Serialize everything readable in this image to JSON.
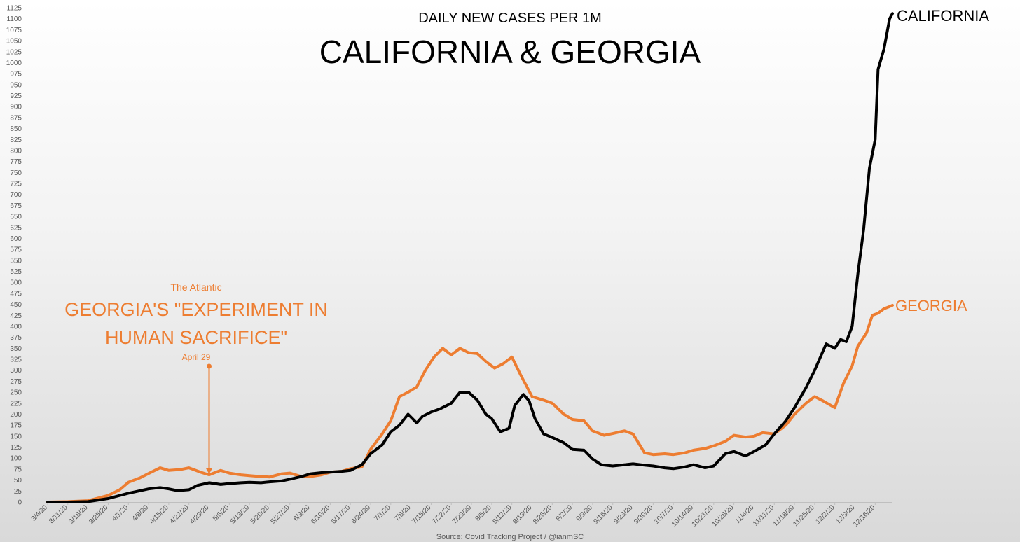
{
  "chart_data": {
    "type": "line",
    "subtitle": "DAILY NEW CASES PER 1M",
    "title": "CALIFORNIA & GEORGIA",
    "source": "Source: Covid Tracking Project / @ianmSC",
    "ylim": [
      0,
      1125
    ],
    "yticks": [
      0,
      25,
      50,
      75,
      100,
      125,
      150,
      175,
      200,
      225,
      250,
      275,
      300,
      325,
      350,
      375,
      400,
      425,
      450,
      475,
      500,
      525,
      550,
      575,
      600,
      625,
      650,
      675,
      700,
      725,
      750,
      775,
      800,
      825,
      850,
      875,
      900,
      925,
      950,
      975,
      1000,
      1025,
      1050,
      1075,
      1100,
      1125
    ],
    "xlim": [
      "2020-03-04",
      "2020-12-22"
    ],
    "xticks": [
      "3/4/20",
      "3/11/20",
      "3/18/20",
      "3/25/20",
      "4/1/20",
      "4/8/20",
      "4/15/20",
      "4/22/20",
      "4/29/20",
      "5/6/20",
      "5/13/20",
      "5/20/20",
      "5/27/20",
      "6/3/20",
      "6/10/20",
      "6/17/20",
      "6/24/20",
      "7/1/20",
      "7/8/20",
      "7/15/20",
      "7/22/20",
      "7/29/20",
      "8/5/20",
      "8/12/20",
      "8/19/20",
      "8/26/20",
      "9/2/20",
      "9/9/20",
      "9/16/20",
      "9/23/20",
      "9/30/20",
      "10/7/20",
      "10/14/20",
      "10/21/20",
      "10/28/20",
      "11/4/20",
      "11/11/20",
      "11/18/20",
      "11/25/20",
      "12/2/20",
      "12/9/20",
      "12/16/20"
    ],
    "grid": false,
    "legend": "none",
    "series": [
      {
        "name": "CALIFORNIA",
        "color": "#000000",
        "points": [
          [
            "2020-03-04",
            0
          ],
          [
            "2020-03-11",
            0
          ],
          [
            "2020-03-18",
            1
          ],
          [
            "2020-03-25",
            8
          ],
          [
            "2020-04-01",
            20
          ],
          [
            "2020-04-08",
            30
          ],
          [
            "2020-04-12",
            33
          ],
          [
            "2020-04-15",
            30
          ],
          [
            "2020-04-18",
            26
          ],
          [
            "2020-04-22",
            28
          ],
          [
            "2020-04-25",
            38
          ],
          [
            "2020-04-29",
            44
          ],
          [
            "2020-05-03",
            40
          ],
          [
            "2020-05-06",
            42
          ],
          [
            "2020-05-10",
            44
          ],
          [
            "2020-05-13",
            45
          ],
          [
            "2020-05-17",
            44
          ],
          [
            "2020-05-20",
            46
          ],
          [
            "2020-05-24",
            48
          ],
          [
            "2020-05-27",
            52
          ],
          [
            "2020-05-31",
            58
          ],
          [
            "2020-06-03",
            64
          ],
          [
            "2020-06-07",
            67
          ],
          [
            "2020-06-10",
            68
          ],
          [
            "2020-06-14",
            70
          ],
          [
            "2020-06-17",
            72
          ],
          [
            "2020-06-21",
            85
          ],
          [
            "2020-06-24",
            110
          ],
          [
            "2020-06-28",
            130
          ],
          [
            "2020-07-01",
            160
          ],
          [
            "2020-07-04",
            175
          ],
          [
            "2020-07-07",
            200
          ],
          [
            "2020-07-10",
            180
          ],
          [
            "2020-07-12",
            195
          ],
          [
            "2020-07-15",
            205
          ],
          [
            "2020-07-18",
            212
          ],
          [
            "2020-07-22",
            225
          ],
          [
            "2020-07-25",
            250
          ],
          [
            "2020-07-28",
            250
          ],
          [
            "2020-07-31",
            232
          ],
          [
            "2020-08-03",
            200
          ],
          [
            "2020-08-05",
            190
          ],
          [
            "2020-08-08",
            160
          ],
          [
            "2020-08-11",
            168
          ],
          [
            "2020-08-13",
            220
          ],
          [
            "2020-08-16",
            245
          ],
          [
            "2020-08-18",
            230
          ],
          [
            "2020-08-20",
            190
          ],
          [
            "2020-08-23",
            155
          ],
          [
            "2020-08-26",
            147
          ],
          [
            "2020-08-30",
            135
          ],
          [
            "2020-09-02",
            120
          ],
          [
            "2020-09-06",
            118
          ],
          [
            "2020-09-09",
            98
          ],
          [
            "2020-09-12",
            85
          ],
          [
            "2020-09-16",
            82
          ],
          [
            "2020-09-20",
            85
          ],
          [
            "2020-09-23",
            87
          ],
          [
            "2020-09-27",
            84
          ],
          [
            "2020-09-30",
            82
          ],
          [
            "2020-10-04",
            78
          ],
          [
            "2020-10-07",
            76
          ],
          [
            "2020-10-11",
            80
          ],
          [
            "2020-10-14",
            85
          ],
          [
            "2020-10-18",
            78
          ],
          [
            "2020-10-21",
            82
          ],
          [
            "2020-10-25",
            110
          ],
          [
            "2020-10-28",
            115
          ],
          [
            "2020-11-01",
            105
          ],
          [
            "2020-11-04",
            115
          ],
          [
            "2020-11-08",
            130
          ],
          [
            "2020-11-11",
            155
          ],
          [
            "2020-11-15",
            185
          ],
          [
            "2020-11-18",
            215
          ],
          [
            "2020-11-22",
            260
          ],
          [
            "2020-11-25",
            300
          ],
          [
            "2020-11-29",
            360
          ],
          [
            "2020-12-02",
            350
          ],
          [
            "2020-12-04",
            370
          ],
          [
            "2020-12-06",
            365
          ],
          [
            "2020-12-08",
            400
          ],
          [
            "2020-12-10",
            520
          ],
          [
            "2020-12-12",
            620
          ],
          [
            "2020-12-14",
            760
          ],
          [
            "2020-12-16",
            825
          ],
          [
            "2020-12-17",
            985
          ],
          [
            "2020-12-19",
            1030
          ],
          [
            "2020-12-21",
            1100
          ],
          [
            "2020-12-22",
            1112
          ]
        ]
      },
      {
        "name": "GEORGIA",
        "color": "#ed7d31",
        "points": [
          [
            "2020-03-04",
            0
          ],
          [
            "2020-03-11",
            1
          ],
          [
            "2020-03-18",
            3
          ],
          [
            "2020-03-25",
            15
          ],
          [
            "2020-03-29",
            28
          ],
          [
            "2020-04-01",
            45
          ],
          [
            "2020-04-05",
            55
          ],
          [
            "2020-04-08",
            65
          ],
          [
            "2020-04-12",
            78
          ],
          [
            "2020-04-15",
            72
          ],
          [
            "2020-04-19",
            74
          ],
          [
            "2020-04-22",
            78
          ],
          [
            "2020-04-26",
            68
          ],
          [
            "2020-04-29",
            62
          ],
          [
            "2020-05-03",
            72
          ],
          [
            "2020-05-06",
            66
          ],
          [
            "2020-05-10",
            62
          ],
          [
            "2020-05-13",
            60
          ],
          [
            "2020-05-17",
            58
          ],
          [
            "2020-05-20",
            57
          ],
          [
            "2020-05-24",
            64
          ],
          [
            "2020-05-27",
            66
          ],
          [
            "2020-05-31",
            58
          ],
          [
            "2020-06-03",
            58
          ],
          [
            "2020-06-07",
            62
          ],
          [
            "2020-06-10",
            68
          ],
          [
            "2020-06-14",
            70
          ],
          [
            "2020-06-17",
            76
          ],
          [
            "2020-06-21",
            80
          ],
          [
            "2020-06-24",
            120
          ],
          [
            "2020-06-28",
            155
          ],
          [
            "2020-07-01",
            185
          ],
          [
            "2020-07-04",
            240
          ],
          [
            "2020-07-07",
            250
          ],
          [
            "2020-07-10",
            262
          ],
          [
            "2020-07-13",
            300
          ],
          [
            "2020-07-16",
            330
          ],
          [
            "2020-07-19",
            350
          ],
          [
            "2020-07-22",
            335
          ],
          [
            "2020-07-25",
            350
          ],
          [
            "2020-07-28",
            340
          ],
          [
            "2020-07-31",
            338
          ],
          [
            "2020-08-03",
            320
          ],
          [
            "2020-08-06",
            305
          ],
          [
            "2020-08-09",
            315
          ],
          [
            "2020-08-12",
            330
          ],
          [
            "2020-08-15",
            290
          ],
          [
            "2020-08-19",
            240
          ],
          [
            "2020-08-23",
            232
          ],
          [
            "2020-08-26",
            225
          ],
          [
            "2020-08-30",
            200
          ],
          [
            "2020-09-02",
            188
          ],
          [
            "2020-09-06",
            185
          ],
          [
            "2020-09-09",
            162
          ],
          [
            "2020-09-13",
            152
          ],
          [
            "2020-09-16",
            156
          ],
          [
            "2020-09-20",
            162
          ],
          [
            "2020-09-23",
            155
          ],
          [
            "2020-09-27",
            112
          ],
          [
            "2020-09-30",
            108
          ],
          [
            "2020-10-04",
            110
          ],
          [
            "2020-10-07",
            108
          ],
          [
            "2020-10-11",
            112
          ],
          [
            "2020-10-14",
            118
          ],
          [
            "2020-10-18",
            122
          ],
          [
            "2020-10-21",
            128
          ],
          [
            "2020-10-25",
            138
          ],
          [
            "2020-10-28",
            152
          ],
          [
            "2020-11-01",
            148
          ],
          [
            "2020-11-04",
            150
          ],
          [
            "2020-11-07",
            158
          ],
          [
            "2020-11-11",
            155
          ],
          [
            "2020-11-15",
            175
          ],
          [
            "2020-11-18",
            200
          ],
          [
            "2020-11-22",
            225
          ],
          [
            "2020-11-25",
            240
          ],
          [
            "2020-11-28",
            230
          ],
          [
            "2020-12-02",
            215
          ],
          [
            "2020-12-05",
            270
          ],
          [
            "2020-12-08",
            310
          ],
          [
            "2020-12-10",
            355
          ],
          [
            "2020-12-13",
            385
          ],
          [
            "2020-12-15",
            425
          ],
          [
            "2020-12-17",
            430
          ],
          [
            "2020-12-19",
            440
          ],
          [
            "2020-12-21",
            445
          ],
          [
            "2020-12-22",
            448
          ]
        ]
      }
    ],
    "annotation": {
      "source_line": "The Atlantic",
      "headline_line1": "GEORGIA'S \"EXPERIMENT IN",
      "headline_line2": "HUMAN SACRIFICE\"",
      "date_label": "April 29",
      "date": "2020-04-29",
      "color": "#ed7d31"
    }
  }
}
